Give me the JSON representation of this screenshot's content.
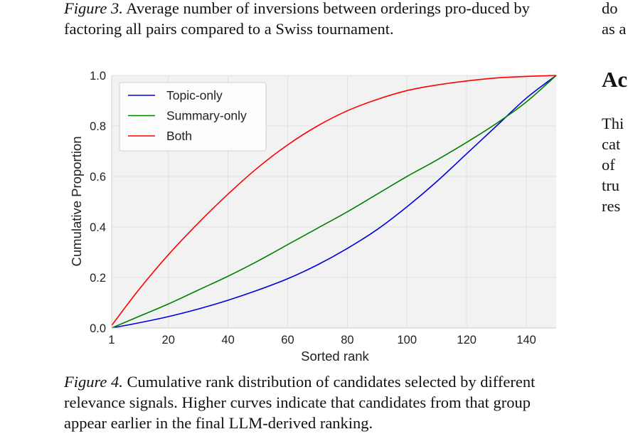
{
  "captions": {
    "fig3": {
      "label": "Figure 3.",
      "text": "Average number of inversions between orderings pro-duced by factoring all pairs compared to a Swiss tournament."
    },
    "fig4": {
      "label": "Figure 4.",
      "text": "Cumulative rank distribution of candidates selected by different relevance signals. Higher curves indicate that candidates from that group appear earlier in the final LLM-derived ranking."
    }
  },
  "right_column": {
    "top_lines": [
      "do",
      "as a"
    ],
    "heading": "Ac",
    "body_lines": [
      "Thi",
      "cat",
      "of",
      "tru",
      "res"
    ]
  },
  "chart_data": {
    "type": "line",
    "title": "",
    "xlabel": "Sorted rank",
    "ylabel": "Cumulative Proportion",
    "xlim": [
      1,
      150
    ],
    "ylim": [
      0,
      1
    ],
    "x_ticks": [
      1,
      20,
      40,
      60,
      80,
      100,
      120,
      140
    ],
    "y_ticks": [
      0.0,
      0.2,
      0.4,
      0.6,
      0.8,
      1.0
    ],
    "y_tick_labels": [
      "0.0",
      "0.2",
      "0.4",
      "0.6",
      "0.8",
      "1.0"
    ],
    "grid": true,
    "legend_position": "top-left",
    "x": [
      1,
      10,
      20,
      30,
      40,
      50,
      60,
      70,
      80,
      90,
      100,
      110,
      120,
      130,
      140,
      150
    ],
    "series": [
      {
        "name": "Topic-only",
        "color": "#0000dd",
        "values": [
          0.0,
          0.02,
          0.045,
          0.075,
          0.11,
          0.15,
          0.195,
          0.25,
          0.315,
          0.39,
          0.48,
          0.58,
          0.69,
          0.8,
          0.91,
          1.0
        ]
      },
      {
        "name": "Summary-only",
        "color": "#008000",
        "values": [
          0.0,
          0.045,
          0.095,
          0.15,
          0.205,
          0.265,
          0.33,
          0.395,
          0.46,
          0.53,
          0.6,
          0.665,
          0.735,
          0.81,
          0.895,
          1.0
        ]
      },
      {
        "name": "Both",
        "color": "#ff0000",
        "values": [
          0.01,
          0.15,
          0.29,
          0.415,
          0.53,
          0.635,
          0.725,
          0.8,
          0.86,
          0.905,
          0.94,
          0.962,
          0.978,
          0.99,
          0.996,
          1.0
        ]
      }
    ]
  }
}
